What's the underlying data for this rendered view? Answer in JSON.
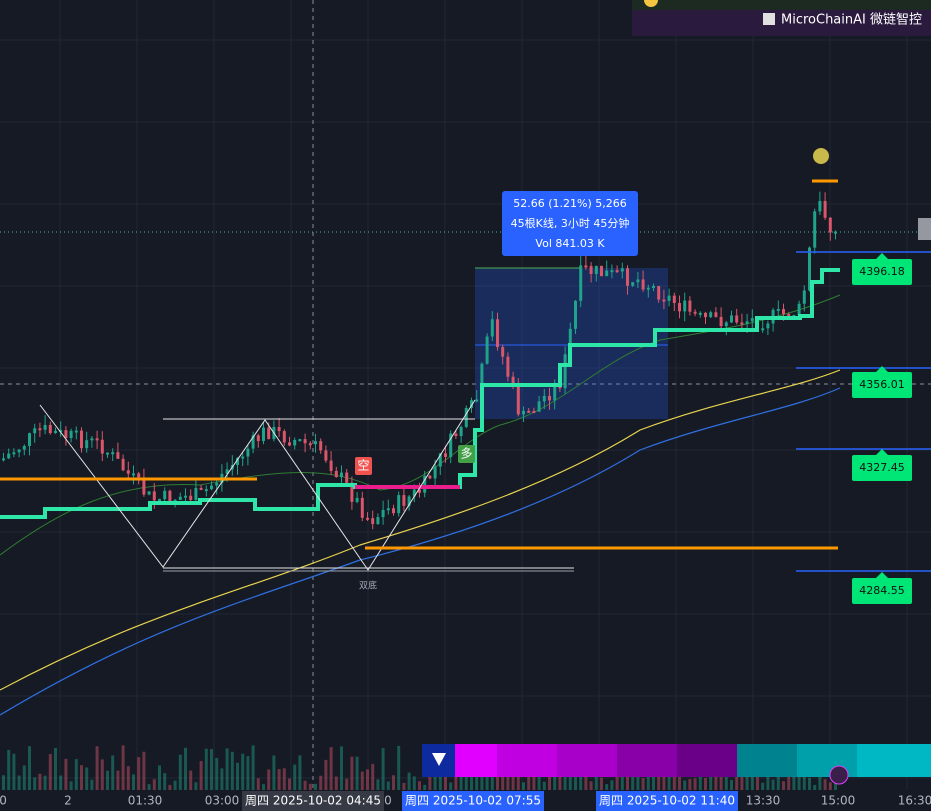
{
  "header": {
    "brand": "MicroChainAI 微链智控"
  },
  "measure": {
    "change": "52.66 (1.21%) 5,266",
    "bars": "45根K线, 3小时 45分钟",
    "volume": "Vol 841.03 K"
  },
  "price_labels": [
    "4396.18",
    "4356.01",
    "4327.45",
    "4284.55"
  ],
  "markers": {
    "short": "空",
    "long": "多",
    "pattern": "双底"
  },
  "time_axis": [
    "0",
    "2",
    "01:30",
    "03:00",
    "周四 2025-10-02  04:45",
    "0",
    "周四 2025-10-02  07:55",
    "周四 2025-10-02  11:40",
    "13:30",
    "15:00",
    "16:30"
  ]
}
